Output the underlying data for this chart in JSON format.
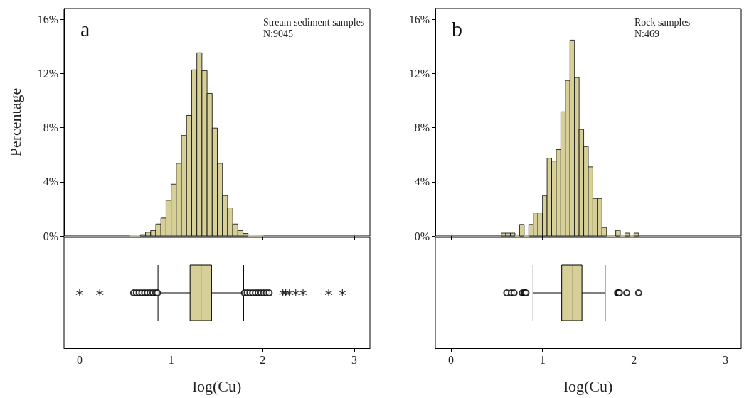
{
  "chart_data": [
    {
      "type": "histogram",
      "title": "a",
      "ylabel": "Percentage",
      "annotations": [
        "Stream sediment samples",
        "N:9045"
      ],
      "color": "#d6cf97",
      "bins": [
        0.552,
        0.608,
        0.664,
        0.72,
        0.776,
        0.832,
        0.888,
        0.944,
        1.0,
        1.056,
        1.112,
        1.168,
        1.224,
        1.28,
        1.336,
        1.392,
        1.448,
        1.504,
        1.56,
        1.616,
        1.672,
        1.728,
        1.784,
        1.84,
        1.896,
        1.952,
        2.008
      ],
      "values": [
        0.02,
        0.05,
        0.1,
        0.27,
        0.4,
        0.88,
        1.32,
        2.63,
        3.82,
        5.36,
        7.42,
        8.9,
        12.27,
        13.53,
        12.21,
        10.53,
        7.97,
        5.36,
        2.98,
        2.07,
        0.88,
        0.4,
        0.18,
        0.04,
        0.02,
        0.01
      ],
      "xlim": [
        -0.17,
        3.17
      ],
      "xticks": [
        0,
        1,
        2,
        3
      ],
      "ylim": [
        0,
        16.8
      ],
      "yticks": [
        {
          "value": 0,
          "label": "0%"
        },
        {
          "value": 4,
          "label": "4%"
        },
        {
          "value": 8,
          "label": "8%"
        },
        {
          "value": 12,
          "label": "12%"
        },
        {
          "value": 16,
          "label": "16%"
        }
      ],
      "tick_labels": "y"
    },
    {
      "type": "box",
      "orientation": "horizontal",
      "categories": [
        null
      ],
      "xlabel": "log(Cu)",
      "xlim": [
        -0.17,
        3.17
      ],
      "xticks": [
        0,
        1,
        2,
        3
      ],
      "tick_labels": "x",
      "series": [
        {
          "type": "box",
          "color": "#d6cf97",
          "marker": "circle",
          "boxes": [
            {
              "low": 0.856,
              "q1": 1.206,
              "median": 1.326,
              "q3": 1.441,
              "high": 1.791,
              "outliers": [
                0.59,
                0.62,
                0.65,
                0.68,
                0.71,
                0.74,
                0.77,
                0.8,
                0.83,
                0.85,
                1.8,
                1.83,
                1.86,
                1.89,
                1.92,
                1.95,
                1.98,
                2.01,
                2.04,
                2.07
              ]
            }
          ]
        },
        {
          "type": "scatter",
          "color": "#000000",
          "marker": "cross",
          "x": [
            null,
            null,
            null,
            null,
            null,
            null,
            null,
            null,
            null
          ],
          "values": [
            0.0,
            0.22,
            2.22,
            2.25,
            2.29,
            2.36,
            2.44,
            2.72,
            2.87
          ]
        }
      ]
    },
    {
      "type": "histogram",
      "title": "b",
      "annotations": [
        "Rock samples",
        "N:469"
      ],
      "color": "#d6cf97",
      "bins": [
        0.55,
        0.6,
        0.65,
        0.7,
        0.75,
        0.8,
        0.85,
        0.9,
        0.95,
        1.0,
        1.05,
        1.1,
        1.15,
        1.2,
        1.25,
        1.3,
        1.35,
        1.4,
        1.45,
        1.5,
        1.55,
        1.6,
        1.65,
        1.7,
        1.75,
        1.8,
        1.85,
        1.9,
        1.95,
        2.0,
        2.05
      ],
      "values": [
        0.21,
        0.21,
        0.21,
        0,
        0.85,
        0,
        0.85,
        1.7,
        1.7,
        2.98,
        5.74,
        5.53,
        6.38,
        9.17,
        11.49,
        14.47,
        11.7,
        7.87,
        6.6,
        5.1,
        2.77,
        2.77,
        0.62,
        0,
        0,
        0.41,
        0,
        0.21,
        0,
        0.21
      ],
      "xlim": [
        -0.17,
        3.17
      ],
      "xticks": [
        0,
        1,
        2,
        3
      ],
      "ylim": [
        0,
        16.8
      ],
      "yticks": [
        {
          "value": 0,
          "label": "0%"
        },
        {
          "value": 4,
          "label": "4%"
        },
        {
          "value": 8,
          "label": "8%"
        },
        {
          "value": 12,
          "label": "12%"
        },
        {
          "value": 16,
          "label": "16%"
        }
      ],
      "tick_labels": "y"
    },
    {
      "type": "box",
      "orientation": "horizontal",
      "categories": [
        null
      ],
      "xlabel": "log(Cu)",
      "xlim": [
        -0.17,
        3.17
      ],
      "xticks": [
        0,
        1,
        2,
        3
      ],
      "tick_labels": "x",
      "series": [
        {
          "type": "box",
          "color": "#d6cf97",
          "marker": "circle",
          "boxes": [
            {
              "low": 0.897,
              "q1": 1.21,
              "median": 1.332,
              "q3": 1.431,
              "high": 1.685,
              "outliers": [
                0.61,
                0.66,
                0.69,
                0.78,
                0.8,
                0.81,
                0.82,
                1.82,
                1.83,
                1.84,
                1.92,
                2.05
              ]
            }
          ]
        }
      ]
    }
  ]
}
